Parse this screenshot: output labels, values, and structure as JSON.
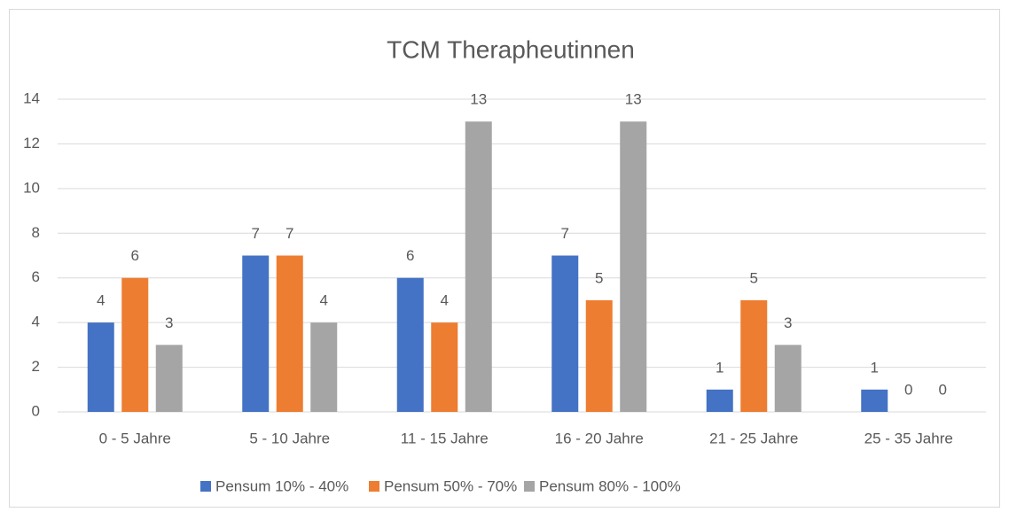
{
  "chart_data": {
    "type": "bar",
    "title": "TCM Therapheutinnen",
    "categories": [
      "0 - 5 Jahre",
      "5 - 10 Jahre",
      "11 - 15 Jahre",
      "16 - 20 Jahre",
      "21 - 25 Jahre",
      "25 - 35 Jahre"
    ],
    "series": [
      {
        "name": "Pensum 10% - 40%",
        "color": "#4472c4",
        "values": [
          4,
          7,
          6,
          7,
          1,
          1
        ]
      },
      {
        "name": "Pensum 50% - 70%",
        "color": "#ed7d31",
        "values": [
          6,
          7,
          4,
          5,
          5,
          0
        ]
      },
      {
        "name": "Pensum 80% - 100%",
        "color": "#a5a5a5",
        "values": [
          3,
          4,
          13,
          13,
          3,
          0
        ]
      }
    ],
    "ylim": [
      0,
      14
    ],
    "yticks": [
      0,
      2,
      4,
      6,
      8,
      10,
      12,
      14
    ],
    "grid": true,
    "legend": "bottom"
  }
}
